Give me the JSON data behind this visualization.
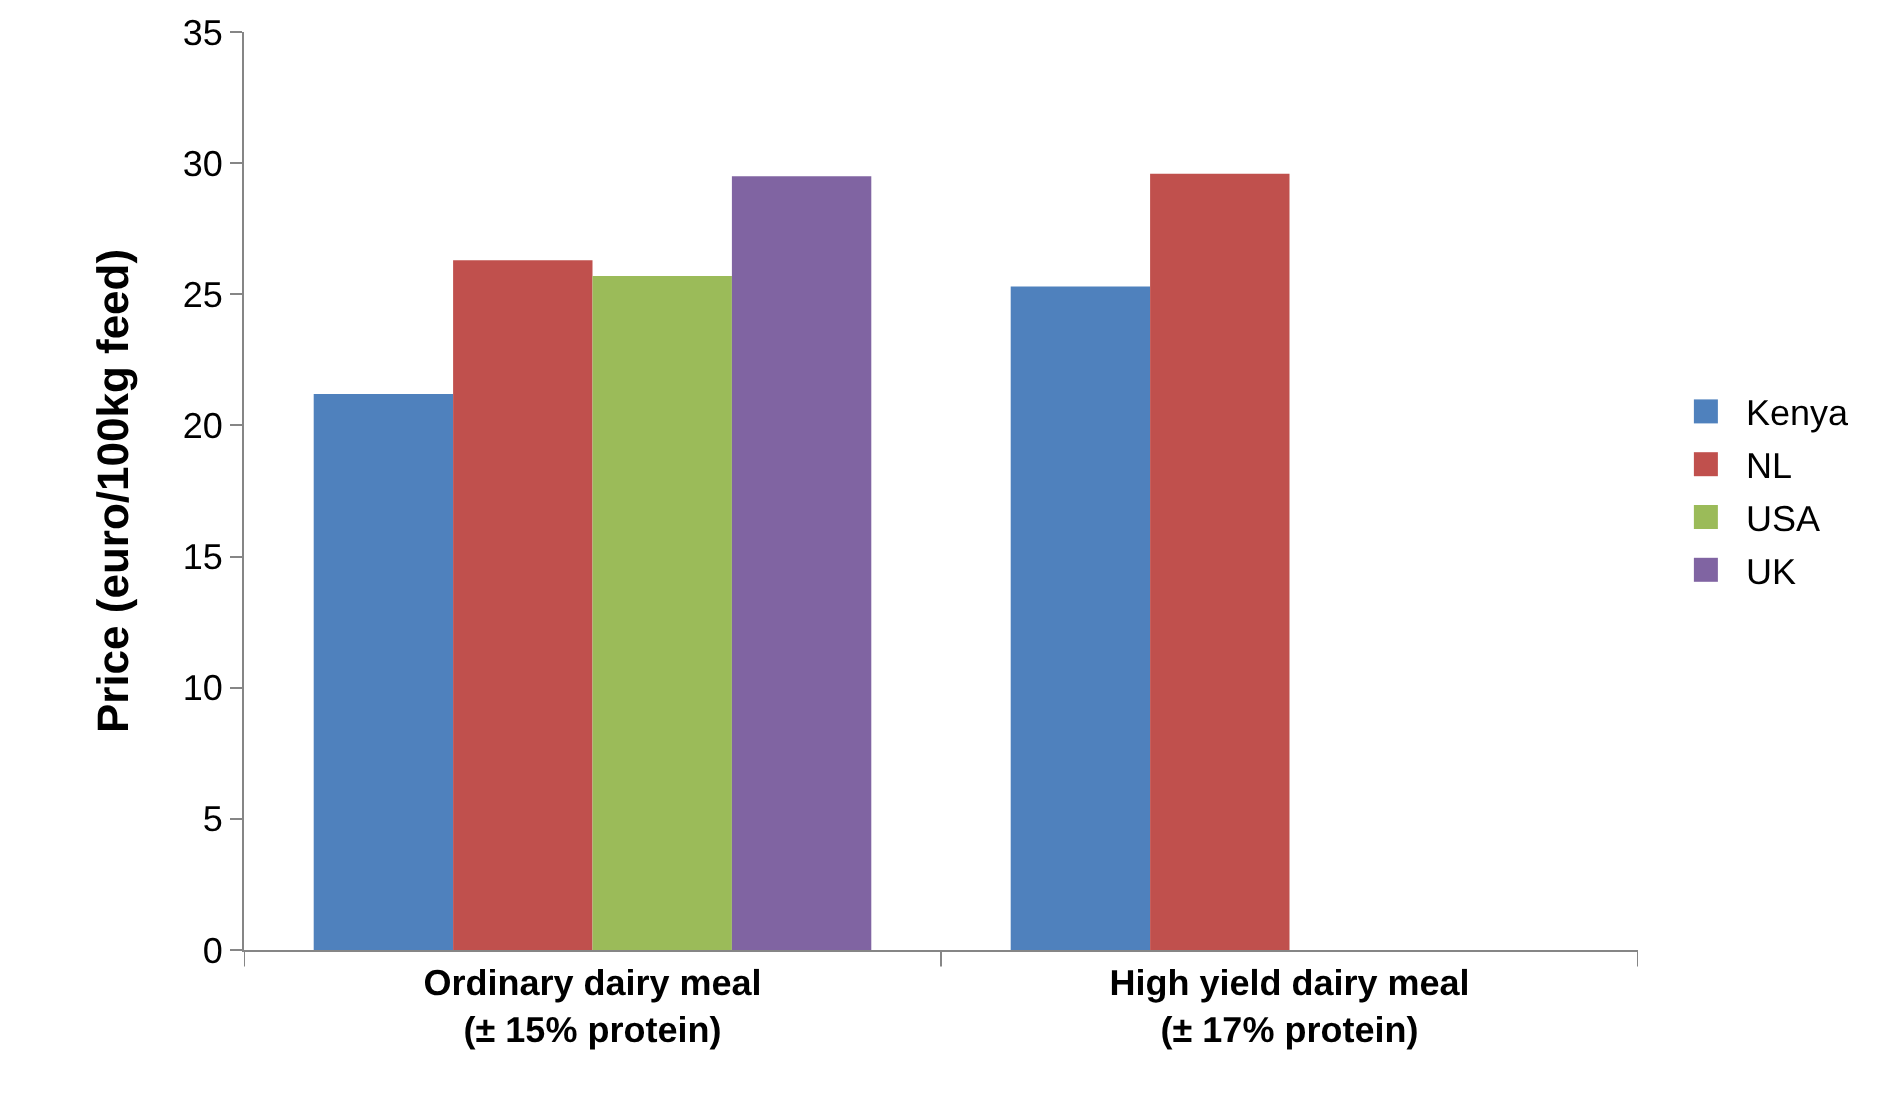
{
  "chart_data": {
    "type": "bar",
    "ylabel": "Price (euro/100kg feed)",
    "categories": [
      "Ordinary dairy meal\n(± 15% protein)",
      "High yield dairy meal\n(± 17% protein)"
    ],
    "series": [
      {
        "name": "Kenya",
        "color": "#4f81bd",
        "values": [
          21.2,
          25.3
        ]
      },
      {
        "name": "NL",
        "color": "#c0504d",
        "values": [
          26.3,
          29.6
        ]
      },
      {
        "name": "USA",
        "color": "#9bbb59",
        "values": [
          25.7,
          null
        ]
      },
      {
        "name": "UK",
        "color": "#8064a2",
        "values": [
          29.5,
          null
        ]
      }
    ],
    "ylim": [
      0,
      35
    ],
    "yticks": [
      0,
      5,
      10,
      15,
      20,
      25,
      30,
      35
    ],
    "grid": false,
    "legend": "right"
  }
}
